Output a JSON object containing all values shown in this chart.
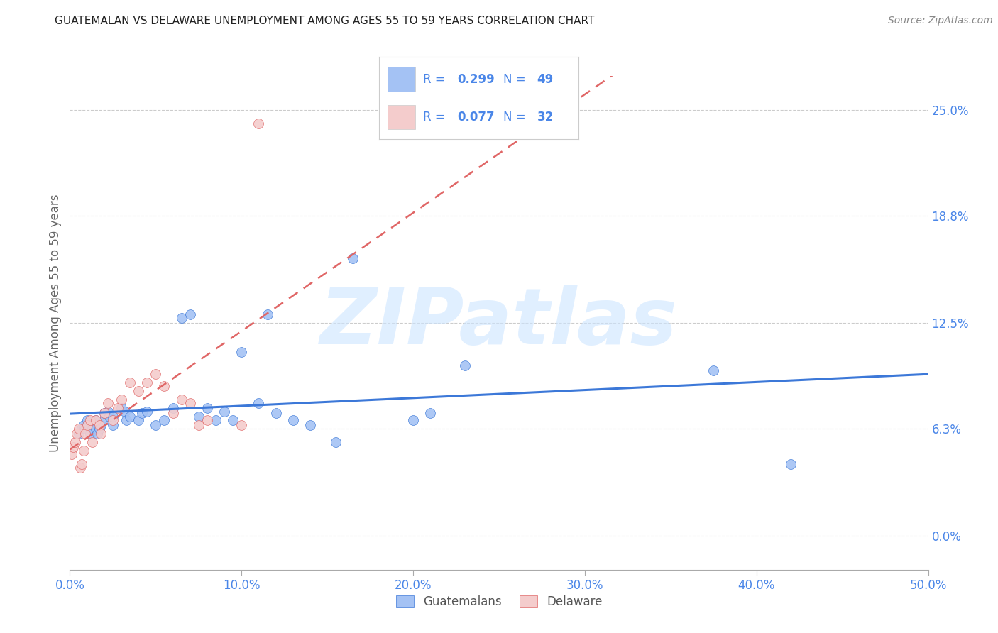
{
  "title": "GUATEMALAN VS DELAWARE UNEMPLOYMENT AMONG AGES 55 TO 59 YEARS CORRELATION CHART",
  "source": "Source: ZipAtlas.com",
  "ylabel": "Unemployment Among Ages 55 to 59 years",
  "xlabel_ticks": [
    "0.0%",
    "10.0%",
    "20.0%",
    "30.0%",
    "40.0%",
    "50.0%"
  ],
  "xlabel_vals": [
    0.0,
    0.1,
    0.2,
    0.3,
    0.4,
    0.5
  ],
  "ylabel_ticks": [
    "25.0%",
    "18.8%",
    "12.5%",
    "6.3%",
    "0.0%"
  ],
  "ylabel_vals": [
    0.25,
    0.188,
    0.125,
    0.063,
    0.0
  ],
  "xlim": [
    0.0,
    0.5
  ],
  "ylim": [
    -0.02,
    0.27
  ],
  "blue_color": "#a4c2f4",
  "pink_color": "#f4cccc",
  "blue_line_color": "#3c78d8",
  "pink_line_color": "#e06666",
  "watermark": "ZIPatlas",
  "watermark_color": "#cce5ff",
  "tick_color": "#4a86e8",
  "legend_text_color": "#4a86e8",
  "blue_x": [
    0.005,
    0.007,
    0.008,
    0.009,
    0.01,
    0.011,
    0.012,
    0.013,
    0.015,
    0.015,
    0.016,
    0.017,
    0.018,
    0.02,
    0.02,
    0.022,
    0.023,
    0.025,
    0.025,
    0.03,
    0.032,
    0.033,
    0.035,
    0.04,
    0.042,
    0.045,
    0.05,
    0.055,
    0.06,
    0.065,
    0.07,
    0.075,
    0.08,
    0.085,
    0.09,
    0.095,
    0.1,
    0.11,
    0.115,
    0.12,
    0.13,
    0.14,
    0.155,
    0.165,
    0.2,
    0.21,
    0.23,
    0.375,
    0.42
  ],
  "blue_y": [
    0.06,
    0.063,
    0.065,
    0.063,
    0.068,
    0.065,
    0.06,
    0.063,
    0.063,
    0.068,
    0.06,
    0.063,
    0.065,
    0.068,
    0.072,
    0.073,
    0.07,
    0.065,
    0.07,
    0.075,
    0.073,
    0.068,
    0.07,
    0.068,
    0.072,
    0.073,
    0.065,
    0.068,
    0.075,
    0.128,
    0.13,
    0.07,
    0.075,
    0.068,
    0.073,
    0.068,
    0.108,
    0.078,
    0.13,
    0.072,
    0.068,
    0.065,
    0.055,
    0.163,
    0.068,
    0.072,
    0.1,
    0.097,
    0.042
  ],
  "pink_x": [
    0.001,
    0.002,
    0.003,
    0.004,
    0.005,
    0.006,
    0.007,
    0.008,
    0.009,
    0.01,
    0.012,
    0.013,
    0.015,
    0.017,
    0.018,
    0.02,
    0.022,
    0.025,
    0.028,
    0.03,
    0.035,
    0.04,
    0.045,
    0.05,
    0.055,
    0.06,
    0.065,
    0.07,
    0.075,
    0.08,
    0.1,
    0.11
  ],
  "pink_y": [
    0.048,
    0.052,
    0.055,
    0.06,
    0.063,
    0.04,
    0.042,
    0.05,
    0.06,
    0.065,
    0.068,
    0.055,
    0.068,
    0.065,
    0.06,
    0.072,
    0.078,
    0.068,
    0.075,
    0.08,
    0.09,
    0.085,
    0.09,
    0.095,
    0.088,
    0.072,
    0.08,
    0.078,
    0.065,
    0.068,
    0.065,
    0.242
  ]
}
